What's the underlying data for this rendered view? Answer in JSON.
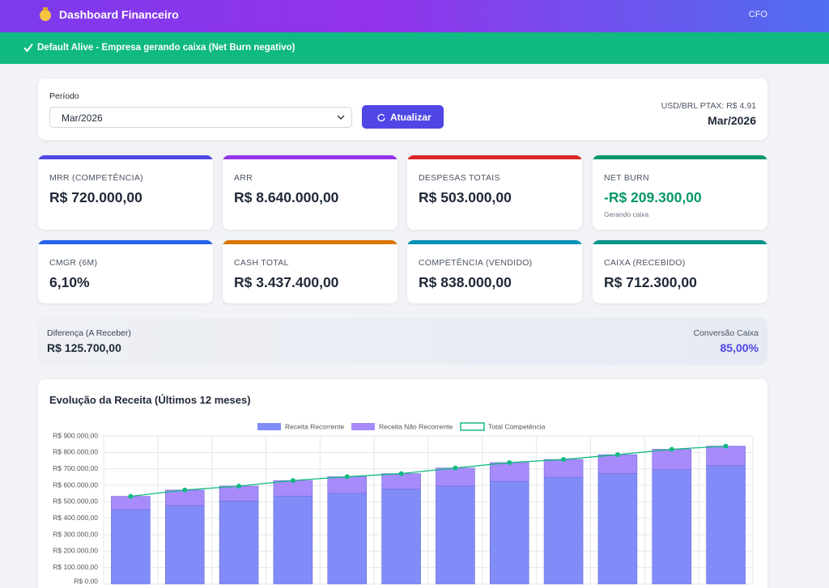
{
  "header": {
    "title": "Dashboard Financeiro",
    "user": "CFO"
  },
  "banner": {
    "text": "Default Alive - Empresa gerando caixa (Net Burn negativo)"
  },
  "filter": {
    "label": "Período",
    "select": "Mar/2026",
    "button": "Atualizar",
    "ptax": "USD/BRL PTAX: R$ 4,91",
    "period": "Mar/2026"
  },
  "kpis": [
    {
      "label": "MRR (COMPETÊNCIA)",
      "value": "R$ 720.000,00",
      "color": "#4f46e5"
    },
    {
      "label": "ARR",
      "value": "R$ 8.640.000,00",
      "color": "#9333ea"
    },
    {
      "label": "DESPESAS TOTAIS",
      "value": "R$ 503.000,00",
      "color": "#dc2626"
    },
    {
      "label": "NET BURN",
      "value": "-R$ 209.300,00",
      "note": "Gerando caixa",
      "color": "#059669",
      "value_color": "#059669"
    },
    {
      "label": "CMGR (6M)",
      "value": "6,10%",
      "color": "#2563eb"
    },
    {
      "label": "CASH TOTAL",
      "value": "R$ 3.437.400,00",
      "color": "#d97706"
    },
    {
      "label": "COMPETÊNCIA (VENDIDO)",
      "value": "R$ 838.000,00",
      "color": "#0891b2"
    },
    {
      "label": "CAIXA (RECEBIDO)",
      "value": "R$ 712.300,00",
      "color": "#0d9488"
    }
  ],
  "difference": {
    "label": "Diferença (A Receber)",
    "value": "R$ 125.700,00",
    "conversion_label": "Conversão Caixa",
    "conversion_value": "85,00%"
  },
  "chart_data": {
    "type": "bar",
    "stacked": true,
    "title": "Evolução da Receita (Últimos 12 meses)",
    "categories": [
      null,
      null,
      null,
      null,
      null,
      null,
      null,
      null,
      null,
      null,
      null,
      null
    ],
    "series": [
      {
        "name": "Receita Recorrente",
        "color": "#818cf8",
        "values": [
          452000,
          476000,
          505000,
          533000,
          552000,
          576000,
          595000,
          624000,
          648000,
          671000,
          695000,
          720000
        ]
      },
      {
        "name": "Receita Não Recorrente",
        "color": "#a78bfa",
        "values": [
          81000,
          95000,
          90000,
          96000,
          100000,
          95000,
          110000,
          114000,
          109000,
          115000,
          124000,
          118000
        ]
      },
      {
        "name": "Total Competência",
        "type": "line",
        "color": "#10b981",
        "values": [
          533000,
          571000,
          595000,
          629000,
          652000,
          671000,
          705000,
          738000,
          757000,
          786000,
          819000,
          838000
        ]
      }
    ],
    "ylim": [
      0,
      900000
    ],
    "yticks": [
      {
        "value": 0,
        "label": "R$ 0,00"
      },
      {
        "value": 100000,
        "label": "R$ 100.000,00"
      },
      {
        "value": 200000,
        "label": "R$ 200.000,00"
      },
      {
        "value": 300000,
        "label": "R$ 300.000,00"
      },
      {
        "value": 400000,
        "label": "R$ 400.000,00"
      },
      {
        "value": 500000,
        "label": "R$ 500.000,00"
      },
      {
        "value": 600000,
        "label": "R$ 600.000,00"
      },
      {
        "value": 700000,
        "label": "R$ 700.000,00"
      },
      {
        "value": 800000,
        "label": "R$ 800.000,00"
      },
      {
        "value": 900000,
        "label": "R$ 900.000,00"
      }
    ],
    "grid": true
  }
}
